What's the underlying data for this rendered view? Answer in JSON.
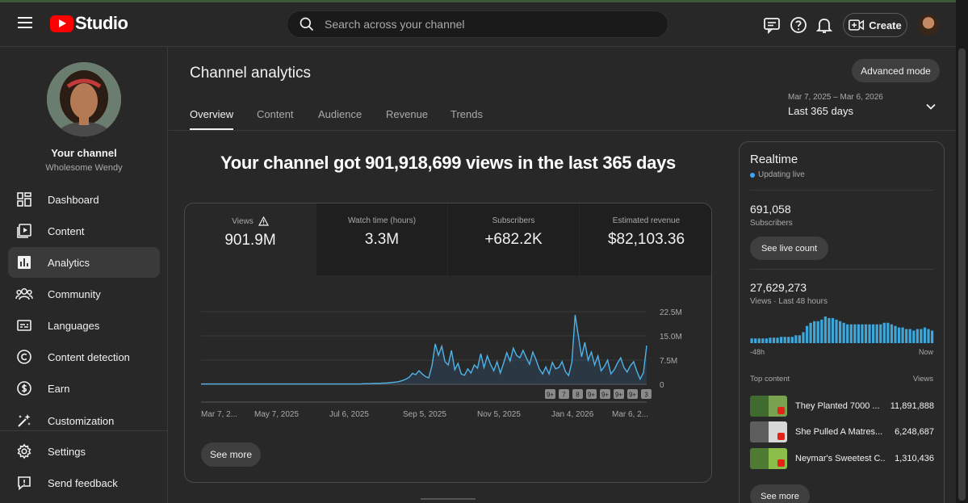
{
  "header": {
    "logo_text": "Studio",
    "search_placeholder": "Search across your channel",
    "create_label": "Create"
  },
  "sidebar": {
    "channel_name": "Your channel",
    "channel_handle": "Wholesome Wendy",
    "items": [
      {
        "label": "Dashboard",
        "icon": "dashboard-icon"
      },
      {
        "label": "Content",
        "icon": "content-icon"
      },
      {
        "label": "Analytics",
        "icon": "analytics-icon",
        "active": true
      },
      {
        "label": "Community",
        "icon": "community-icon"
      },
      {
        "label": "Languages",
        "icon": "languages-icon"
      },
      {
        "label": "Content detection",
        "icon": "copyright-icon"
      },
      {
        "label": "Earn",
        "icon": "earn-icon"
      },
      {
        "label": "Customization",
        "icon": "customization-icon"
      },
      {
        "label": "Settings",
        "icon": "gear-icon"
      },
      {
        "label": "Send feedback",
        "icon": "feedback-icon"
      }
    ]
  },
  "main": {
    "title": "Channel analytics",
    "advanced_label": "Advanced mode",
    "tabs": [
      "Overview",
      "Content",
      "Audience",
      "Revenue",
      "Trends"
    ],
    "date_range": {
      "dates": "Mar 7, 2025 – Mar 6, 2026",
      "label": "Last 365 days"
    },
    "headline": "Your channel got 901,918,699 views in the last 365 days",
    "metrics": [
      {
        "label": "Views",
        "value": "901.9M"
      },
      {
        "label": "Watch time (hours)",
        "value": "3.3M"
      },
      {
        "label": "Subscribers",
        "value": "+682.2K"
      },
      {
        "label": "Estimated revenue",
        "value": "$82,103.36"
      }
    ],
    "see_more": "See more"
  },
  "chart_data": {
    "type": "line",
    "series_name": "Views",
    "y_ticks": [
      "22.5M",
      "15.0M",
      "7.5M",
      "0"
    ],
    "ylim": [
      0,
      22500000
    ],
    "x_ticks": [
      "Mar 7, 2...",
      "May 7, 2025",
      "Jul 6, 2025",
      "Sep 5, 2025",
      "Nov 5, 2025",
      "Jan 4, 2026",
      "Mar 6, 2..."
    ],
    "markers": [
      "9+",
      "7",
      "8",
      "9+",
      "9+",
      "9+",
      "9+",
      "3"
    ],
    "values": [
      0.1,
      0.1,
      0.1,
      0.1,
      0.1,
      0.1,
      0.1,
      0.1,
      0.1,
      0.1,
      0.1,
      0.1,
      0.1,
      0.1,
      0.1,
      0.1,
      0.1,
      0.1,
      0.1,
      0.1,
      0.1,
      0.1,
      0.1,
      0.1,
      0.1,
      0.1,
      0.1,
      0.1,
      0.1,
      0.1,
      0.1,
      0.1,
      0.1,
      0.1,
      0.1,
      0.1,
      0.1,
      0.1,
      0.1,
      0.1,
      0.1,
      0.1,
      0.1,
      0.1,
      0.1,
      0.1,
      0.1,
      0.1,
      0.1,
      0.1,
      0.2,
      0.2,
      0.2,
      0.3,
      0.3,
      0.3,
      0.4,
      0.4,
      0.5,
      0.6,
      0.7,
      0.9,
      1.2,
      1.6,
      2.2,
      3.4,
      3.0,
      4.2,
      3.2,
      2.4,
      2.0,
      5.8,
      12.5,
      9.0,
      11.8,
      7.0,
      6.0,
      10.5,
      4.5,
      6.5,
      3.2,
      2.8,
      4.8,
      3.5,
      6.0,
      5.0,
      9.5,
      5.2,
      8.8,
      6.2,
      4.2,
      7.0,
      3.5,
      6.5,
      9.8,
      7.2,
      11.2,
      9.0,
      8.2,
      10.5,
      8.2,
      6.2,
      10.0,
      7.6,
      4.8,
      3.2,
      5.4,
      3.2,
      6.8,
      4.8,
      5.2,
      7.0,
      4.0,
      2.7,
      6.8,
      21.5,
      15.0,
      8.5,
      13.0,
      7.5,
      10.0,
      6.0,
      8.8,
      4.2,
      5.5,
      7.5,
      3.2,
      4.5,
      6.5,
      8.2,
      5.2,
      3.8,
      5.8,
      7.0,
      4.0,
      1.6,
      3.6,
      12.0
    ]
  },
  "realtime": {
    "title": "Realtime",
    "status": "Updating live",
    "subscribers": "691,058",
    "subscribers_label": "Subscribers",
    "live_count_label": "See live count",
    "views": "27,629,273",
    "views_label": "Views · Last 48 hours",
    "axis_left": "-48h",
    "axis_right": "Now",
    "hourly": [
      3,
      3,
      3,
      3,
      3,
      3.5,
      3.5,
      3.5,
      4,
      4,
      4,
      4,
      5,
      5,
      7,
      11,
      13,
      14,
      14,
      15,
      17,
      16,
      16,
      15,
      14,
      13,
      12,
      12,
      12,
      12,
      12,
      12,
      12,
      12,
      12,
      12,
      13,
      13,
      12,
      11,
      10,
      10,
      9,
      9,
      8,
      9,
      9,
      10,
      9,
      8
    ],
    "top_content_label": "Top content",
    "views_col_label": "Views",
    "top_content": [
      {
        "title": "They Planted 7000 ...",
        "views": "11,891,888"
      },
      {
        "title": "She Pulled A Matres...",
        "views": "6,248,687"
      },
      {
        "title": "Neymar's Sweetest C...",
        "views": "1,310,436"
      }
    ],
    "see_more": "See more"
  }
}
